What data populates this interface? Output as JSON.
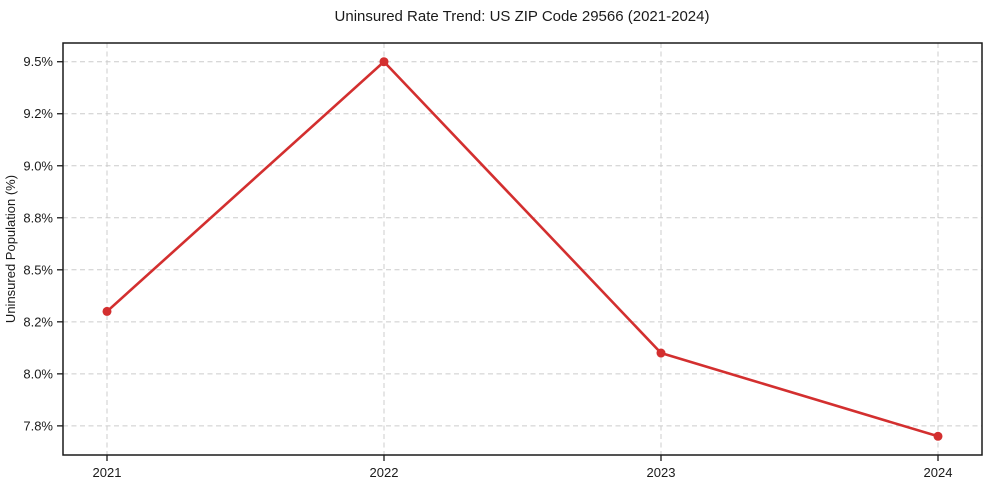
{
  "chart_data": {
    "type": "line",
    "title": "Uninsured Rate Trend: US ZIP Code 29566 (2021-2024)",
    "xlabel": "",
    "ylabel": "Uninsured Population (%)",
    "categories": [
      "2021",
      "2022",
      "2023",
      "2024"
    ],
    "values": [
      8.3,
      9.5,
      8.1,
      7.7
    ],
    "ylim": [
      7.61,
      9.59
    ],
    "yticks": [
      {
        "value": 7.75,
        "label": "7.8%"
      },
      {
        "value": 8.0,
        "label": "8.0%"
      },
      {
        "value": 8.25,
        "label": "8.2%"
      },
      {
        "value": 8.5,
        "label": "8.5%"
      },
      {
        "value": 8.75,
        "label": "8.8%"
      },
      {
        "value": 9.0,
        "label": "9.0%"
      },
      {
        "value": 9.25,
        "label": "9.2%"
      },
      {
        "value": 9.5,
        "label": "9.5%"
      }
    ],
    "grid": true,
    "legend": false,
    "line_color": "#d32f2f",
    "marker_color": "#d32f2f",
    "grid_color": "#cccccc",
    "spine_color": "#1a1a1a",
    "background": "#ffffff"
  }
}
